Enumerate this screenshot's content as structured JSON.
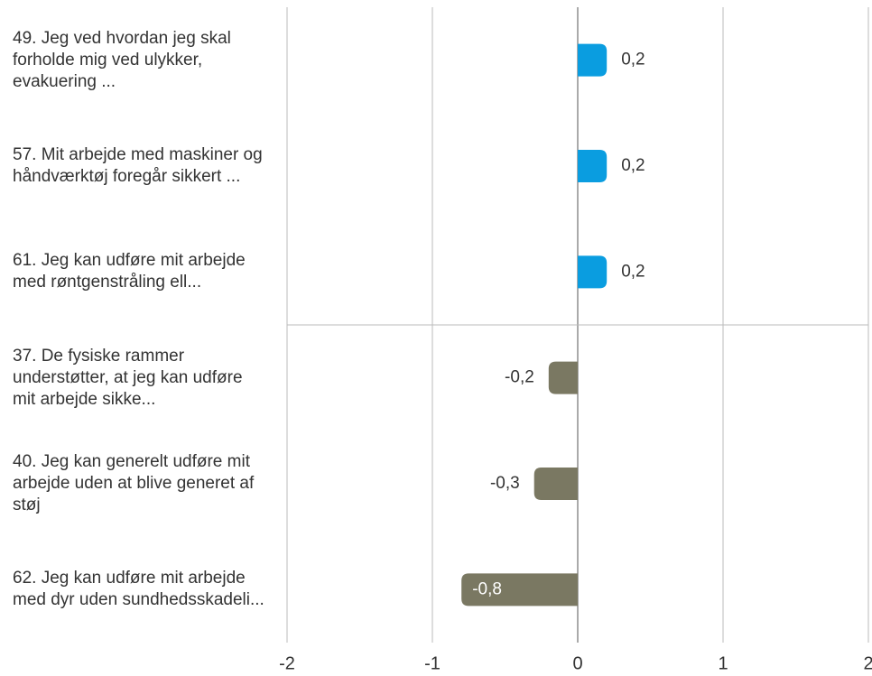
{
  "chart_data": {
    "type": "bar",
    "orientation": "horizontal",
    "categories": [
      "49. Jeg ved hvordan jeg skal forholde mig ved ulykker, evakuering ...",
      "57. Mit arbejde med maskiner og håndværktøj foregår sikkert ...",
      "61. Jeg kan udføre mit arbejde med røntgenstråling ell...",
      "37. De fysiske rammer understøtter, at jeg kan udføre mit arbejde sikke...",
      "40. Jeg kan generelt udføre mit arbejde uden at blive generet af støj",
      "62. Jeg kan udføre mit arbejde med dyr uden sundhedsskadeli..."
    ],
    "values": [
      0.2,
      0.2,
      0.2,
      -0.2,
      -0.3,
      -0.8
    ],
    "value_labels": [
      "0,2",
      "0,2",
      "0,2",
      "-0,2",
      "-0,3",
      "-0,8"
    ],
    "colors": [
      "#0a9de0",
      "#0a9de0",
      "#0a9de0",
      "#7a7862",
      "#7a7862",
      "#7a7862"
    ],
    "xlim": [
      -2,
      2
    ],
    "xticks": [
      -2,
      -1,
      0,
      1,
      2
    ],
    "grid": true
  }
}
